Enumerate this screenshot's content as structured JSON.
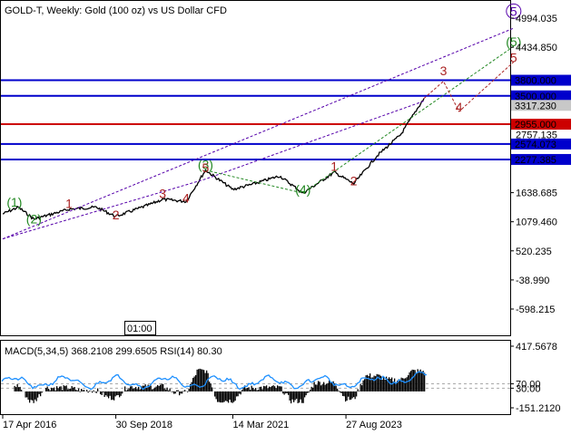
{
  "header": {
    "title": "GOLD-T, Weekly:  Gold (100 oz) vs US Dollar CFD"
  },
  "time_marker": "01:00",
  "indicator_label": "MACD(5,34,5) 368.2108 299.6505 RSI(14) 80.30",
  "colors": {
    "level_blue": "#0000cc",
    "level_red": "#cc0000",
    "green_wave": "#228822",
    "red_wave": "#aa2222",
    "purple_wave": "#5500aa",
    "rsi_line": "#1e90ff",
    "macd_hist": "#000000"
  },
  "chart_data": [
    {
      "type": "line",
      "name": "price",
      "ylim": [
        -900,
        5400
      ],
      "y_ticks": [
        "4994.035",
        "4434.850",
        "1638.685",
        "1079.460",
        "520.235",
        "-38.990",
        "-598.215"
      ],
      "x_ticks": [
        "17 Apr 2016",
        "30 Sep 2018",
        "14 Mar 2021",
        "27 Aug 2023"
      ],
      "levels": [
        {
          "value": 3800,
          "label": "3800.000",
          "style": "blue"
        },
        {
          "value": 3500,
          "label": "3500.000",
          "style": "blue"
        },
        {
          "value": 3317.23,
          "label": "3317.230",
          "style": "current"
        },
        {
          "value": 2955,
          "label": "2955.000",
          "style": "red"
        },
        {
          "value": 2574.073,
          "label": "2574.073",
          "style": "blue"
        },
        {
          "value": 2277.385,
          "label": "2277.385",
          "style": "blue"
        }
      ],
      "faint_labels": [
        "2757.135"
      ],
      "series": [
        {
          "x": [
            "2016-04",
            "2016-08",
            "2016-12",
            "2017-09",
            "2018-04",
            "2018-09",
            "2019-06",
            "2019-09",
            "2020-03",
            "2020-08",
            "2021-03",
            "2021-08",
            "2022-03",
            "2022-09",
            "2023-05",
            "2023-10",
            "2024-04",
            "2024-10",
            "2025-04"
          ],
          "values": [
            1230,
            1360,
            1130,
            1320,
            1360,
            1180,
            1420,
            1510,
            1470,
            2070,
            1700,
            1800,
            1960,
            1630,
            2030,
            1810,
            2350,
            2750,
            3450
          ]
        }
      ],
      "wave_labels": [
        {
          "text": "(1)",
          "x": "2016-07",
          "y": 1370,
          "color": "green"
        },
        {
          "text": "(2)",
          "x": "2016-12",
          "y": 1050,
          "color": "green"
        },
        {
          "text": "1",
          "x": "2017-09",
          "y": 1340,
          "color": "red"
        },
        {
          "text": "2",
          "x": "2018-09",
          "y": 1130,
          "color": "red"
        },
        {
          "text": "3",
          "x": "2019-09",
          "y": 1540,
          "color": "red"
        },
        {
          "text": "4",
          "x": "2020-03",
          "y": 1450,
          "color": "red"
        },
        {
          "text": "(3)",
          "x": "2020-08",
          "y": 2090,
          "color": "green"
        },
        {
          "text": "5",
          "x": "2020-08",
          "y": 2030,
          "color": "red"
        },
        {
          "text": "(4)",
          "x": "2022-09",
          "y": 1610,
          "color": "green"
        },
        {
          "text": "1",
          "x": "2023-05",
          "y": 2060,
          "color": "red"
        },
        {
          "text": "2",
          "x": "2023-10",
          "y": 1780,
          "color": "red"
        },
        {
          "text": "3",
          "x": "2025-09",
          "y": 3900,
          "color": "red"
        },
        {
          "text": "4",
          "x": "2026-01",
          "y": 3200,
          "color": "red"
        },
        {
          "text": "5",
          "x": "2027-03",
          "y": 4150,
          "color": "red"
        },
        {
          "text": "(5)",
          "x": "2027-03",
          "y": 4450,
          "color": "green"
        },
        {
          "text": "5",
          "x": "2027-03",
          "y": 5040,
          "color": "purple",
          "circled": true
        }
      ],
      "forecast": {
        "red": {
          "x": [
            "2025-04",
            "2025-09",
            "2026-01",
            "2027-03"
          ],
          "values": [
            3450,
            3780,
            3200,
            4150
          ]
        },
        "green": {
          "x": [
            "2020-08",
            "2022-09"
          ],
          "values": [
            2070,
            1630
          ]
        },
        "green_upper": {
          "x": [
            "2022-09",
            "2027-03"
          ],
          "values": [
            1630,
            4450
          ]
        },
        "purple_upper": {
          "x": [
            "2016-04",
            "2027-03"
          ],
          "values": [
            750,
            4800
          ]
        },
        "purple_lower": {
          "x": [
            "2016-04",
            "2020-08",
            "2025-04"
          ],
          "values": [
            750,
            1900,
            3400
          ]
        }
      }
    },
    {
      "type": "line",
      "name": "indicators",
      "ylim": [
        -180,
        440
      ],
      "y_ticks": [
        "417.5678",
        "70.00",
        "30.00",
        "-151.2120"
      ],
      "series": [
        {
          "name": "MACD",
          "style": "histogram"
        },
        {
          "name": "RSI",
          "style": "line"
        }
      ],
      "rsi_levels": [
        70,
        30
      ]
    }
  ]
}
